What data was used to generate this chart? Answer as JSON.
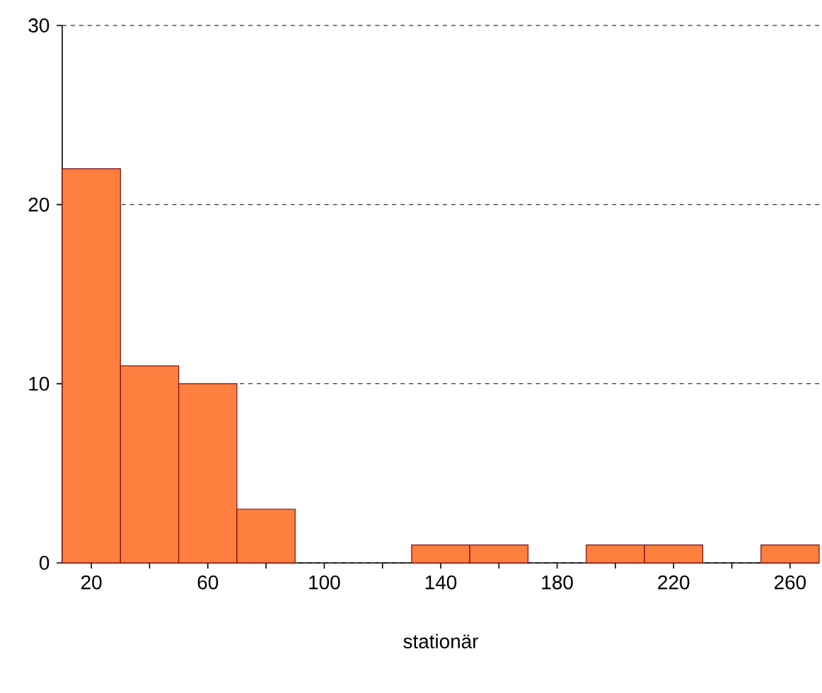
{
  "chart_data": {
    "type": "histogram",
    "xlabel": "stationär",
    "bins": [
      10,
      30,
      50,
      70,
      90,
      110,
      130,
      150,
      170,
      190,
      210,
      230,
      250,
      270
    ],
    "values": [
      22,
      11,
      10,
      3,
      0,
      0,
      1,
      1,
      0,
      1,
      1,
      0,
      1
    ],
    "color": "#ff7f3f",
    "xlim": [
      10,
      270
    ],
    "xticks": [
      20,
      {
        "value": 40,
        "label": null
      },
      60,
      {
        "value": 80,
        "label": null
      },
      100,
      {
        "value": 120,
        "label": null
      },
      140,
      {
        "value": 160,
        "label": null
      },
      180,
      {
        "value": 200,
        "label": null
      },
      220,
      {
        "value": 240,
        "label": null
      },
      260
    ],
    "ylim": [
      0,
      30
    ],
    "yticks": [
      0,
      10,
      20,
      30
    ],
    "grid": "y"
  }
}
